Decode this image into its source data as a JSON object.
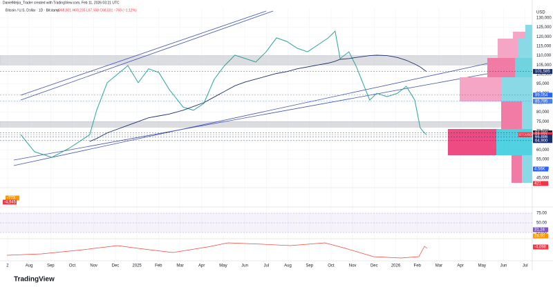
{
  "header": {
    "credit": "DanielMejia_Trader created with TradingView.com, Feb 11, 2026 03:21 UTC",
    "symbol": "Bitcoin / U.S. Dollar · 1D · Bitstamp",
    "ohlc": "O68,801 H69,235 L67,568 C68,031 −769 (−1.12%)"
  },
  "chart_data": {
    "type": "line",
    "x": [
      0.61,
      1.25,
      2.05,
      2.85,
      3.81,
      4.13,
      4.62,
      5.58,
      6.06,
      6.54,
      7.02,
      7.5,
      8.14,
      8.62,
      9.1,
      9.58,
      10.06,
      10.54,
      11.03,
      11.51,
      11.99,
      12.47,
      12.95,
      13.43,
      13.91,
      14.39,
      14.87,
      15.19,
      15.42,
      15.83,
      16.15,
      16.47,
      16.79,
      17.12,
      17.6,
      18.08,
      18.49,
      18.88,
      19.13,
      19.25,
      19.42
    ],
    "series": [
      {
        "name": "BTCUSD",
        "color": "#26a69a",
        "values": [
          68100,
          59000,
          56000,
          60800,
          68000,
          81000,
          95600,
          104700,
          95600,
          103000,
          101000,
          92000,
          82700,
          81000,
          84600,
          97400,
          104700,
          110200,
          108400,
          106600,
          112000,
          119400,
          117500,
          113900,
          112000,
          115700,
          119400,
          123000,
          108400,
          112000,
          104700,
          95600,
          86400,
          90000,
          88200,
          90000,
          93700,
          86400,
          71800,
          70000,
          68031
        ]
      },
      {
        "color": "#1b2f6e",
        "values": [
          null,
          null,
          null,
          null,
          64500,
          66000,
          69000,
          73000,
          75000,
          77000,
          78000,
          79000,
          81000,
          83000,
          85000,
          88000,
          91000,
          94000,
          96000,
          97500,
          99000,
          100500,
          101500,
          103000,
          104000,
          105000,
          106000,
          107000,
          108000,
          108400,
          109000,
          109500,
          110000,
          110200,
          110000,
          109000,
          107500,
          105500,
          104000,
          103000,
          101585
        ]
      }
    ],
    "xlim": [
      -0.35,
      24.33
    ],
    "xticks": [
      {
        "value": 0,
        "label": "2"
      },
      {
        "value": 1,
        "label": "Aug"
      },
      {
        "value": 2,
        "label": "Sep"
      },
      {
        "value": 3,
        "label": "Oct"
      },
      {
        "value": 4,
        "label": "Nov"
      },
      {
        "value": 5,
        "label": "Dec"
      },
      {
        "value": 6,
        "label": "2025"
      },
      {
        "value": 7,
        "label": "Feb"
      },
      {
        "value": 8,
        "label": "Mar"
      },
      {
        "value": 9,
        "label": "Apr"
      },
      {
        "value": 10,
        "label": "May"
      },
      {
        "value": 11,
        "label": "Jun"
      },
      {
        "value": 12,
        "label": "Jul"
      },
      {
        "value": 13,
        "label": "Aug"
      },
      {
        "value": 14,
        "label": "Sep"
      },
      {
        "value": 15,
        "label": "Oct"
      },
      {
        "value": 16,
        "label": "Nov"
      },
      {
        "value": 17,
        "label": "Dec"
      },
      {
        "value": 18,
        "label": "2026"
      },
      {
        "value": 19,
        "label": "Feb"
      },
      {
        "value": 20,
        "label": "Mar"
      },
      {
        "value": 21,
        "label": "Apr"
      },
      {
        "value": 22,
        "label": "May"
      },
      {
        "value": 23,
        "label": "Jun"
      },
      {
        "value": 24,
        "label": "Jul"
      }
    ],
    "ylim": [
      41400,
      135100
    ],
    "yticks": [
      {
        "value": 130000,
        "label": "130,000"
      },
      {
        "value": 125000,
        "label": "125,000"
      },
      {
        "value": 120000,
        "label": "120,000"
      },
      {
        "value": 115000,
        "label": "115,000"
      },
      {
        "value": 110000,
        "label": "110,000"
      },
      {
        "value": 105000,
        "label": "105,000"
      },
      {
        "value": 100000,
        "label": "100,000"
      },
      {
        "value": 95000,
        "label": "95,000"
      },
      {
        "value": 90000,
        "label": "90,000"
      },
      {
        "value": 85000,
        "label": "85,000"
      },
      {
        "value": 80000,
        "label": "80,000"
      },
      {
        "value": 75000,
        "label": "75,000"
      },
      {
        "value": 70000,
        "label": "70,000"
      },
      {
        "value": 65000,
        "label": "65,000"
      },
      {
        "value": 60000,
        "label": "60,000"
      },
      {
        "value": 55000,
        "label": "55,000"
      },
      {
        "value": 50000,
        "label": "50,000"
      },
      {
        "value": 45000,
        "label": "45,000"
      }
    ],
    "axis_unit": "USD",
    "grid": true,
    "zones": [
      {
        "from": 105000,
        "to": 110000
      },
      {
        "from": 72000,
        "to": 75000
      }
    ],
    "price_labels": [
      {
        "value": 101585,
        "label": "101,585",
        "color": "#1b2f6e"
      },
      {
        "value": 89054,
        "label": "89,054",
        "color": "#2962ff"
      },
      {
        "value": 85795,
        "label": "85,795",
        "color": "#4a7ff0"
      },
      {
        "value": 68989,
        "label": "68,989",
        "color": "#131722"
      },
      {
        "value": 68031,
        "label": "68,031",
        "color": "#f23645"
      },
      {
        "value": 66886,
        "label": "66,886",
        "color": "#1b2f6e"
      },
      {
        "value": 64900,
        "label": "64,900",
        "color": "#1b2f6e"
      }
    ],
    "last_symbol": "BTCUSD",
    "volume_labels": [
      {
        "text": "4.56K",
        "color": "#2962ff"
      },
      {
        "text": "421",
        "color": "#f23645"
      }
    ]
  },
  "lower_panes": {
    "macd_labels": [
      {
        "text": "-773",
        "color": "#ff9800"
      },
      {
        "text": "-4,945",
        "color": "#f23645"
      }
    ],
    "rsi_ticks": [
      {
        "value": 75,
        "label": "75.00"
      },
      {
        "value": 50,
        "label": "50.00"
      },
      {
        "value": 25,
        "label": "25.00"
      }
    ],
    "rsi_labels": [
      {
        "text": "31.24",
        "color": "#7e57c2"
      },
      {
        "text": "28.90",
        "color": "#ff9800"
      }
    ],
    "cvd_label": {
      "text": "-4,098",
      "color": "#f23645"
    }
  },
  "footer": "TradingView"
}
